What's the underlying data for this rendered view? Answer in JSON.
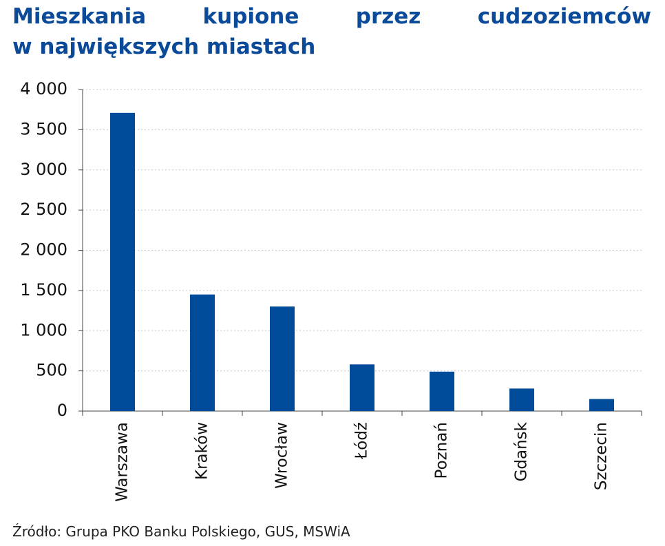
{
  "chart_data": {
    "type": "bar",
    "title": [
      "Mieszkania kupione przez cudzoziemców",
      "w największych miastach"
    ],
    "categories": [
      "Warszawa",
      "Kraków",
      "Wrocław",
      "Łódź",
      "Poznań",
      "Gdańsk",
      "Szczecin"
    ],
    "values": [
      3710,
      1450,
      1300,
      580,
      490,
      280,
      150
    ],
    "color": "#004c9b",
    "ylim": [
      0,
      4000
    ],
    "yticks": [
      0,
      500,
      {
        "value": 1000,
        "label": "1 000"
      },
      {
        "value": 1500,
        "label": "1 500"
      },
      {
        "value": 2000,
        "label": "2 000"
      },
      {
        "value": 2500,
        "label": "2 500"
      },
      {
        "value": 3000,
        "label": "3 000"
      },
      {
        "value": 3500,
        "label": "3 500"
      },
      {
        "value": 4000,
        "label": "4 000"
      }
    ],
    "grid": true,
    "source": "Źródło: Grupa PKO Banku Polskiego, GUS, MSWiA"
  }
}
